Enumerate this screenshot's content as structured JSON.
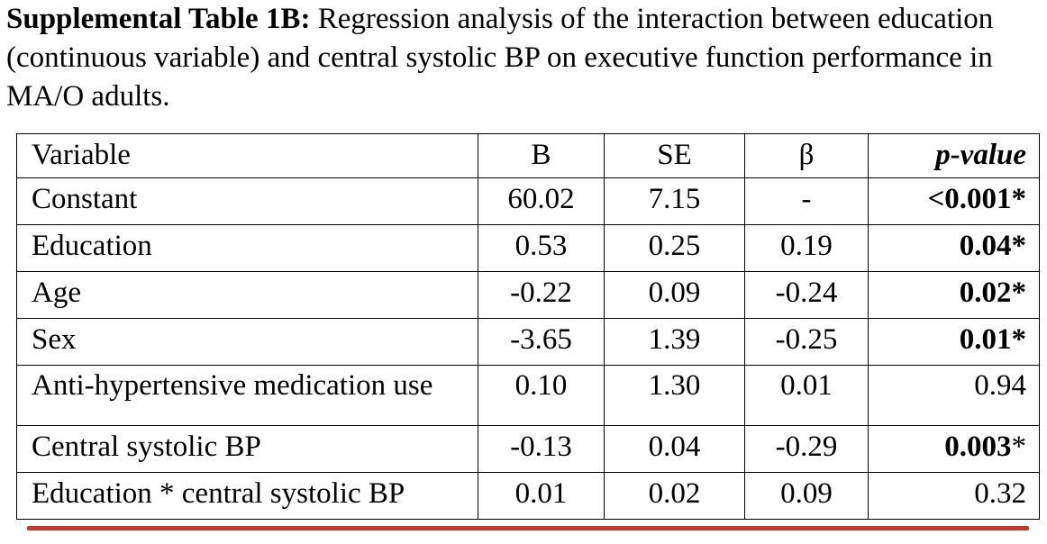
{
  "caption": {
    "lead": "Supplemental Table 1B:",
    "text": " Regression analysis of the interaction between education (continuous variable) and central systolic BP on executive function performance in MA/O adults."
  },
  "table": {
    "headers": {
      "variable": "Variable",
      "b": "B",
      "se": "SE",
      "beta": "β",
      "p": "p-value"
    },
    "rows": [
      {
        "variable": "Constant",
        "b": "60.02",
        "se": "7.15",
        "beta": "-",
        "p": "<0.001*",
        "p_bold": true
      },
      {
        "variable": "Education",
        "b": "0.53",
        "se": "0.25",
        "beta": "0.19",
        "p": "0.04*",
        "p_bold": true
      },
      {
        "variable": "Age",
        "b": "-0.22",
        "se": "0.09",
        "beta": "-0.24",
        "p": "0.02*",
        "p_bold": true
      },
      {
        "variable": "Sex",
        "b": "-3.65",
        "se": "1.39",
        "beta": "-0.25",
        "p": "0.01*",
        "p_bold": true
      },
      {
        "variable": "Anti-hypertensive medication use",
        "b": "0.10",
        "se": "1.30",
        "beta": "0.01",
        "p": "0.94",
        "p_bold": false,
        "tall": true
      },
      {
        "variable": "Central systolic BP",
        "b": "-0.13",
        "se": "0.04",
        "beta": "-0.29",
        "p": "0.003",
        "p_suffix": "*",
        "p_bold": true
      },
      {
        "variable": "Education * central systolic BP",
        "b": "0.01",
        "se": "0.02",
        "beta": "0.09",
        "p": "0.32",
        "p_bold": false
      }
    ]
  },
  "annotation": {
    "underline_color": "#c0392b"
  }
}
